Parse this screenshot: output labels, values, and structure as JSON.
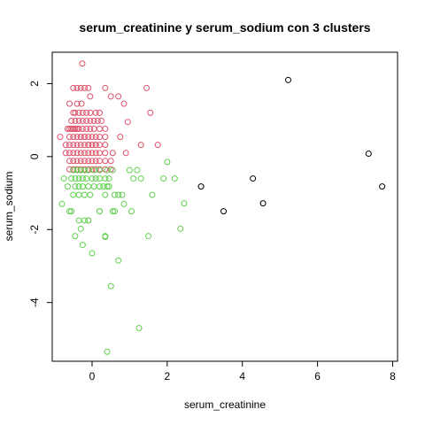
{
  "chart_data": {
    "type": "scatter",
    "title": "serum_creatinine  y  serum_sodium con  3  clusters",
    "xlabel": "serum_creatinine",
    "ylabel": "serum_sodium",
    "xlim": [
      -1.06,
      8.13
    ],
    "ylim": [
      -5.61,
      2.86
    ],
    "xticks": [
      0,
      2,
      4,
      6,
      8
    ],
    "yticks": [
      -4,
      -2,
      0,
      2
    ],
    "xtick_labels": [
      "0",
      "2",
      "4",
      "6",
      "8"
    ],
    "ytick_labels": [
      "-4",
      "-2",
      "0",
      "2"
    ],
    "grid": false,
    "legend": "none",
    "cluster_colors": {
      "1": "#DF536B",
      "2": "#61D04F",
      "3": "#000000"
    },
    "series": [
      {
        "cluster": "1",
        "color": "#DF536B",
        "x": [
          -0.26,
          -0.5,
          -0.4,
          -0.3,
          -0.2,
          -0.1,
          0.35,
          0.5,
          0.7,
          0.85,
          1.45,
          0.95,
          -0.6,
          -0.4,
          -0.28,
          -0.05,
          -0.5,
          -0.45,
          -0.35,
          -0.25,
          -0.15,
          -0.05,
          0.1,
          0.2,
          -0.55,
          -0.45,
          -0.35,
          -0.25,
          -0.15,
          -0.05,
          0.05,
          0.15,
          0.25,
          -0.65,
          -0.55,
          -0.45,
          -0.35,
          -0.25,
          -0.15,
          -0.05,
          0.05,
          0.2,
          0.35,
          1.55,
          -0.6,
          -0.5,
          -0.4,
          -0.3,
          -0.2,
          -0.1,
          0.0,
          0.1,
          0.2,
          0.35,
          -0.85,
          -0.7,
          -0.6,
          -0.5,
          -0.4,
          -0.3,
          -0.2,
          -0.1,
          0.0,
          0.1,
          0.2,
          0.35,
          -0.7,
          -0.6,
          -0.5,
          -0.4,
          -0.3,
          -0.2,
          -0.1,
          0.0,
          0.1,
          0.2,
          0.35,
          0.55,
          1.3,
          1.75,
          -0.6,
          -0.5,
          -0.4,
          -0.3,
          -0.2,
          -0.1,
          0.0,
          0.1,
          0.2,
          0.35,
          0.5,
          0.9,
          -0.6,
          -0.5,
          -0.4,
          -0.3,
          -0.2,
          -0.1,
          0.0,
          0.1,
          0.2,
          0.35,
          0.5,
          0.75,
          -0.6,
          -0.5,
          -0.4,
          -0.3,
          -0.2,
          -0.1,
          0.0,
          0.1
        ],
        "y": [
          2.55,
          1.88,
          1.88,
          1.88,
          1.88,
          1.88,
          1.88,
          1.65,
          1.65,
          1.45,
          1.88,
          0.95,
          1.45,
          1.45,
          1.45,
          1.65,
          1.2,
          1.2,
          1.2,
          1.2,
          1.2,
          1.2,
          1.2,
          1.2,
          0.98,
          0.98,
          0.98,
          0.98,
          0.98,
          0.98,
          0.98,
          0.98,
          0.98,
          0.76,
          0.76,
          0.76,
          0.76,
          0.76,
          0.76,
          0.76,
          0.76,
          0.76,
          0.76,
          1.2,
          0.54,
          0.54,
          0.54,
          0.54,
          0.54,
          0.54,
          0.54,
          0.54,
          0.54,
          0.54,
          0.54,
          0.32,
          0.32,
          0.32,
          0.32,
          0.32,
          0.32,
          0.32,
          0.32,
          0.32,
          0.32,
          0.32,
          0.1,
          0.1,
          0.1,
          0.1,
          0.1,
          0.1,
          0.1,
          0.1,
          0.1,
          0.1,
          0.1,
          0.1,
          0.32,
          0.32,
          -0.12,
          -0.12,
          -0.12,
          -0.12,
          -0.12,
          -0.12,
          -0.12,
          -0.12,
          -0.12,
          -0.12,
          -0.12,
          0.1,
          -0.35,
          -0.35,
          -0.35,
          -0.35,
          -0.35,
          -0.35,
          -0.35,
          -0.35,
          -0.35,
          -0.35,
          -0.35,
          0.54,
          0.76,
          0.76,
          0.76,
          0.54,
          0.54,
          0.32,
          0.32,
          0.32
        ]
      },
      {
        "cluster": "2",
        "color": "#61D04F",
        "x": [
          -0.75,
          -0.55,
          -0.45,
          -0.35,
          -0.25,
          -0.15,
          0.0,
          0.1,
          0.2,
          0.35,
          0.45,
          1.1,
          1.3,
          1.9,
          -0.5,
          -0.4,
          -0.3,
          -0.2,
          -0.1,
          0.05,
          0.2,
          0.4,
          0.55,
          1.0,
          1.2,
          2.0,
          2.2,
          -0.8,
          -0.65,
          -0.45,
          -0.35,
          -0.25,
          -0.1,
          0.05,
          0.2,
          0.3,
          0.4,
          0.6,
          0.7,
          0.8,
          1.6,
          2.45,
          -0.6,
          -0.5,
          -0.35,
          -0.2,
          -0.05,
          0.2,
          0.35,
          0.6,
          1.05,
          -0.45,
          -0.25,
          -0.1,
          0.2,
          0.35,
          0.45,
          0.55,
          0.85,
          1.5,
          2.35,
          -0.3,
          -0.2,
          -0.1,
          0.35,
          0.7,
          0.0,
          0.5,
          1.25,
          0.4,
          -0.55,
          -0.35
        ],
        "y": [
          -0.6,
          -0.6,
          -0.6,
          -0.6,
          -0.6,
          -0.6,
          -0.6,
          -0.6,
          -0.6,
          -0.6,
          -0.6,
          -0.6,
          -0.6,
          -0.6,
          -0.37,
          -0.37,
          -0.37,
          -0.37,
          -0.37,
          -0.37,
          -0.37,
          -0.37,
          -0.37,
          -0.37,
          -0.37,
          -0.15,
          -0.6,
          -1.3,
          -0.82,
          -0.82,
          -0.82,
          -0.82,
          -0.82,
          -0.82,
          -0.82,
          -0.82,
          -0.82,
          -1.05,
          -1.05,
          -1.05,
          -1.05,
          -1.28,
          -1.5,
          -1.05,
          -1.05,
          -1.05,
          -1.05,
          -1.5,
          -1.05,
          -1.5,
          -1.5,
          -2.18,
          -2.42,
          -1.75,
          -1.5,
          -2.2,
          -0.82,
          -1.5,
          -1.3,
          -2.18,
          -1.98,
          -1.98,
          -1.75,
          -1.75,
          -2.18,
          -2.85,
          -2.65,
          -3.55,
          -4.7,
          -5.35,
          -1.5,
          -1.75
        ]
      },
      {
        "cluster": "3",
        "color": "#000000",
        "x": [
          2.9,
          3.5,
          4.28,
          4.55,
          5.22,
          7.36,
          7.72
        ],
        "y": [
          -0.82,
          -1.5,
          -0.6,
          -1.28,
          2.1,
          0.08,
          -0.82
        ]
      }
    ]
  }
}
